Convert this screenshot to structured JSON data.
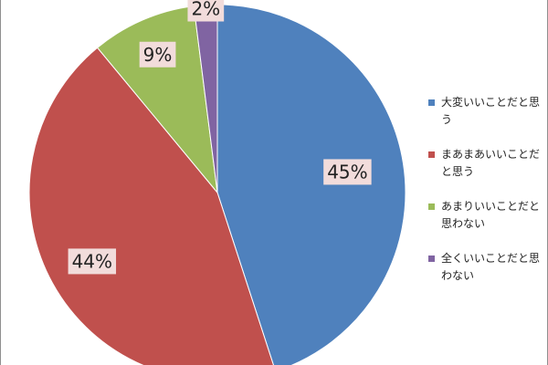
{
  "chart_data": {
    "type": "pie",
    "categories": [
      "大変いいことだと思う",
      "まあまあいいことだと思う",
      "あまりいいことだと思わない",
      "全くいいことだと思わない"
    ],
    "values": [
      45,
      44,
      9,
      2
    ],
    "value_labels": [
      "45%",
      "44%",
      "9%",
      "2%"
    ],
    "colors": [
      "#4f81bd",
      "#c0504d",
      "#9bbb59",
      "#8064a2"
    ],
    "legend_position": "right",
    "start_angle": "top",
    "direction": "clockwise"
  }
}
